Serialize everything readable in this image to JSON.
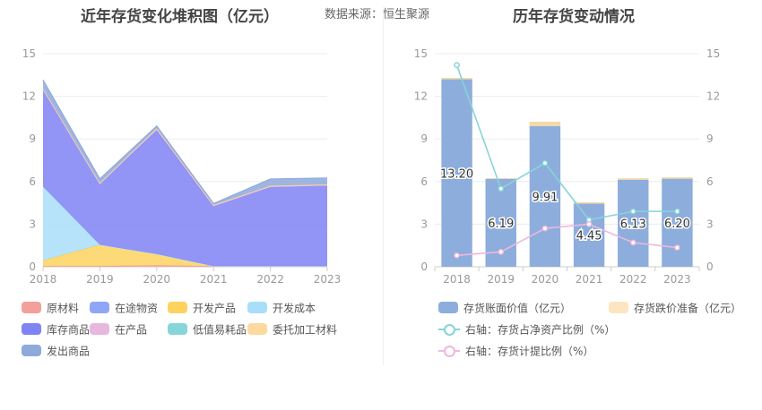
{
  "header": {
    "source_label": "数据来源：恒生聚源"
  },
  "chart_data": [
    {
      "type": "area",
      "title": "近年存货变化堆积图（亿元）",
      "stacked": true,
      "categories": [
        "2018",
        "2019",
        "2020",
        "2021",
        "2022",
        "2023"
      ],
      "ylim": [
        0,
        15
      ],
      "yticks": [
        0,
        3,
        6,
        9,
        12,
        15
      ],
      "grid": true,
      "legend_position": "bottom",
      "series": [
        {
          "name": "原材料",
          "color": "#f4a09a",
          "values": [
            0.05,
            0.05,
            0.1,
            0.05,
            0.05,
            0.05
          ]
        },
        {
          "name": "在途物资",
          "color": "#8fa5f5",
          "values": [
            0,
            0,
            0,
            0,
            0,
            0
          ]
        },
        {
          "name": "开发产品",
          "color": "#fdd260",
          "values": [
            0.4,
            1.5,
            0.8,
            0,
            0,
            0
          ]
        },
        {
          "name": "开发成本",
          "color": "#a9def9",
          "values": [
            5.2,
            0,
            0,
            0,
            0,
            0
          ]
        },
        {
          "name": "库存商品",
          "color": "#7f83f4",
          "values": [
            6.85,
            4.3,
            8.7,
            4.25,
            5.6,
            5.7
          ]
        },
        {
          "name": "在产品",
          "color": "#e8b7df",
          "values": [
            0,
            0,
            0.1,
            0,
            0,
            0
          ]
        },
        {
          "name": "低值易耗品",
          "color": "#86d5d9",
          "values": [
            0,
            0,
            0,
            0,
            0,
            0
          ]
        },
        {
          "name": "委托加工材料",
          "color": "#fdd9a0",
          "values": [
            0.05,
            0.05,
            0.05,
            0.05,
            0.05,
            0.05
          ]
        },
        {
          "name": "发出商品",
          "color": "#8eaadb",
          "values": [
            0.6,
            0.29,
            0.16,
            0.1,
            0.48,
            0.45
          ]
        }
      ]
    },
    {
      "type": "bar",
      "title": "历年存货变动情况",
      "categories": [
        "2018",
        "2019",
        "2020",
        "2021",
        "2022",
        "2023"
      ],
      "ylim": [
        0,
        15
      ],
      "yticks": [
        0,
        3,
        6,
        9,
        12,
        15
      ],
      "y2lim": [
        0,
        15
      ],
      "y2ticks": [
        0,
        3,
        6,
        9,
        12,
        15
      ],
      "grid": true,
      "legend_position": "bottom",
      "series": [
        {
          "name": "存货账面价值（亿元）",
          "type": "bar",
          "axis": "left",
          "color": "#8daddc",
          "values": [
            13.2,
            6.19,
            9.91,
            4.45,
            6.13,
            6.2
          ],
          "labels": [
            "13.20",
            "6.19",
            "9.91",
            "4.45",
            "6.13",
            "6.20"
          ]
        },
        {
          "name": "存货跌价准备（亿元）",
          "type": "bar",
          "axis": "left",
          "color": "#fce5c0",
          "values": [
            0.1,
            0.05,
            0.3,
            0.1,
            0.1,
            0.1
          ]
        },
        {
          "name": "右轴：存货占净资产比例（%）",
          "type": "line",
          "axis": "right",
          "color": "#86d4d8",
          "values": [
            14.2,
            5.5,
            7.3,
            3.3,
            3.9,
            3.9
          ]
        },
        {
          "name": "右轴：存货计提比例（%）",
          "type": "line",
          "axis": "right",
          "color": "#ecb8de",
          "values": [
            0.8,
            1.05,
            2.7,
            3.0,
            1.7,
            1.35
          ]
        }
      ]
    }
  ]
}
